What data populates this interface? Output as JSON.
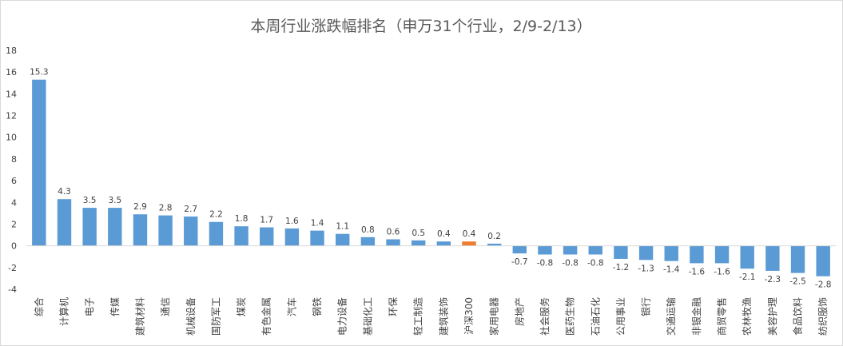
{
  "chart_data": {
    "type": "bar",
    "title": "本周行业涨跌幅排名（申万31个行业，2/9-2/13）",
    "xlabel": "",
    "ylabel": "",
    "ylim": [
      -4,
      18
    ],
    "yticks": [
      -4,
      -2,
      0,
      2,
      4,
      6,
      8,
      10,
      12,
      14,
      16,
      18
    ],
    "grid": false,
    "legend": "none",
    "categories": [
      "综合",
      "计算机",
      "电子",
      "传媒",
      "建筑材料",
      "通信",
      "机械设备",
      "国防军工",
      "煤炭",
      "有色金属",
      "汽车",
      "钢铁",
      "电力设备",
      "基础化工",
      "环保",
      "轻工制造",
      "建筑装饰",
      "沪深300",
      "家用电器",
      "房地产",
      "社会服务",
      "医药生物",
      "石油石化",
      "公用事业",
      "银行",
      "交通运输",
      "非银金融",
      "商贸零售",
      "农林牧渔",
      "美容护理",
      "食品饮料",
      "纺织服饰"
    ],
    "values": [
      15.3,
      4.3,
      3.5,
      3.5,
      2.9,
      2.8,
      2.7,
      2.2,
      1.8,
      1.7,
      1.6,
      1.4,
      1.1,
      0.8,
      0.6,
      0.5,
      0.4,
      0.4,
      0.2,
      -0.7,
      -0.8,
      -0.8,
      -0.8,
      -1.2,
      -1.3,
      -1.4,
      -1.6,
      -1.6,
      -2.1,
      -2.3,
      -2.5,
      -2.8
    ],
    "highlight_category": "沪深300",
    "colors": {
      "bar": "#5B9BD5",
      "highlight": "#ED7D31",
      "axis": "#d9d9d9"
    }
  }
}
